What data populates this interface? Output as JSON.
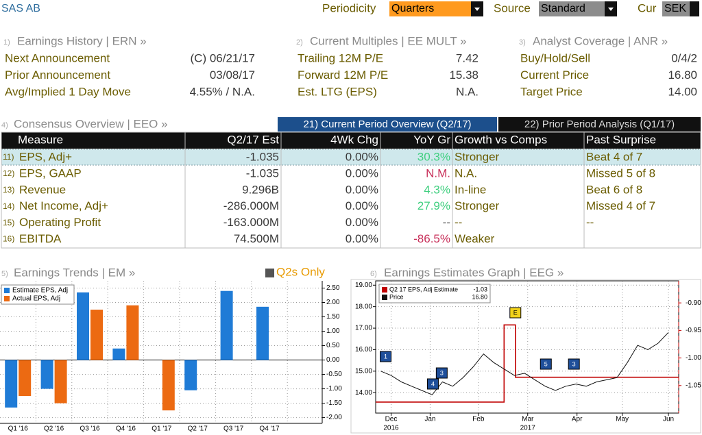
{
  "header": {
    "ticker": "SAS AB",
    "periodicity_label": "Periodicity",
    "periodicity": "Quarters",
    "source_label": "Source",
    "source": "Standard",
    "currency_label": "Cur",
    "currency": "SEK"
  },
  "panels": [
    {
      "number": "1)",
      "title": "Earnings History | ERN »",
      "rows": [
        [
          "Next Announcement",
          "(C)  06/21/17"
        ],
        [
          "Prior Announcement",
          "03/08/17"
        ],
        [
          "Avg/Implied 1 Day Move",
          "4.55% / N.A."
        ]
      ]
    },
    {
      "number": "2)",
      "title": "Current Multiples | EE MULT »",
      "rows": [
        [
          "Trailing 12M P/E",
          "7.42"
        ],
        [
          "Forward 12M P/E",
          "15.38"
        ],
        [
          "Est. LTG (EPS)",
          "N.A."
        ]
      ]
    },
    {
      "number": "3)",
      "title": "Analyst Coverage | ANR »",
      "rows": [
        [
          "Buy/Hold/Sell",
          "0/4/2"
        ],
        [
          "Current Price",
          "16.80"
        ],
        [
          "Target Price",
          "14.00"
        ]
      ]
    }
  ],
  "consensus": {
    "number": "4)",
    "title": "Consensus Overview | EEO »",
    "tabs": [
      {
        "label": "21) Current Period Overview (Q2/17)",
        "active": true
      },
      {
        "label": "22) Prior Period Analysis (Q1/17)",
        "active": false
      }
    ],
    "columns": [
      "Measure",
      "Q2/17 Est",
      "4Wk Chg",
      "YoY Gr",
      "Growth vs Comps",
      "Past Surprise"
    ],
    "rows": [
      {
        "number": "11)",
        "cells": [
          "EPS, Adj+",
          "-1.035",
          "0.00%",
          "30.3%",
          "Stronger",
          "Beat 4 of 7"
        ],
        "yoy_color": "#3fcf7f",
        "selected": true
      },
      {
        "number": "12)",
        "cells": [
          "EPS, GAAP",
          "-1.035",
          "0.00%",
          "N.M.",
          "N.A.",
          "Missed 5 of 8"
        ],
        "yoy_color": "#c8305a",
        "selected": false
      },
      {
        "number": "13)",
        "cells": [
          "Revenue",
          "9.296B",
          "0.00%",
          "4.3%",
          "In-line",
          "Beat 6 of 8"
        ],
        "yoy_color": "#3fcf7f",
        "selected": false
      },
      {
        "number": "14)",
        "cells": [
          "Net Income, Adj+",
          "-286.000M",
          "0.00%",
          "27.9%",
          "Stronger",
          "Missed 4 of 7"
        ],
        "yoy_color": "#3fcf7f",
        "selected": false
      },
      {
        "number": "15)",
        "cells": [
          "Operating Profit",
          "-163.000M",
          "0.00%",
          "--",
          "--",
          "--"
        ],
        "yoy_color": "#555555",
        "selected": false
      },
      {
        "number": "16)",
        "cells": [
          "EBITDA",
          "74.500M",
          "0.00%",
          "-86.5%",
          "Weaker",
          ""
        ],
        "yoy_color": "#c8305a",
        "selected": false
      }
    ]
  },
  "chart_data": [
    {
      "type": "bar",
      "number": "5)",
      "title": "Earnings Trends | EM »",
      "option": "Q2s Only",
      "categories": [
        "Q1 '16",
        "Q2 '16",
        "Q3 '16",
        "Q4 '16",
        "Q1 '17",
        "Q2 '17",
        "Q3 '17",
        "Q4 '17"
      ],
      "series": [
        {
          "name": "Estimate EPS, Adj",
          "color": "#1f7bd6",
          "values": [
            -1.65,
            -1.0,
            2.35,
            0.4,
            null,
            -1.05,
            2.4,
            1.85
          ]
        },
        {
          "name": "Actual EPS, Adj",
          "color": "#ec6a12",
          "values": [
            -1.25,
            -1.5,
            1.75,
            1.9,
            -1.75,
            null,
            null,
            null
          ]
        }
      ],
      "ylim": [
        -2.2,
        2.75
      ],
      "yticks": [
        {
          "value": 2.5,
          "label": "2.50"
        },
        {
          "value": 2,
          "label": "2.00"
        },
        {
          "value": 1.5,
          "label": "1.50"
        },
        {
          "value": 1,
          "label": "1.00"
        },
        {
          "value": 0.5,
          "label": "0.50"
        },
        {
          "value": 0,
          "label": "0.00"
        },
        {
          "value": -0.5,
          "label": "-0.50"
        },
        {
          "value": -1,
          "label": "-1.00"
        },
        {
          "value": -1.5,
          "label": "-1.50"
        },
        {
          "value": -2,
          "label": "-2.00"
        }
      ],
      "grid": true
    },
    {
      "type": "line",
      "number": "6)",
      "title": "Earnings Estimates Graph | EEG »",
      "series": [
        {
          "name": "Q2 17 EPS, Adj Estimate",
          "legend_value": "-1.03",
          "color": "#c00000",
          "axis": "y2",
          "x": [
            -0.5,
            12,
            12,
            13.1,
            13.1,
            29
          ],
          "values": [
            -1.08,
            -1.08,
            -0.94,
            -0.94,
            -1.035,
            -1.035
          ]
        },
        {
          "name": "Price",
          "legend_value": "16.80",
          "color": "#111111",
          "x": [
            0,
            1,
            2,
            3,
            4,
            5,
            6,
            7,
            8,
            9,
            10,
            11,
            12,
            13,
            14,
            15,
            16,
            17,
            18,
            19,
            20,
            21,
            22,
            23,
            24,
            25,
            26,
            27,
            28
          ],
          "values": [
            15.0,
            14.8,
            14.5,
            14.3,
            14.1,
            13.9,
            14.5,
            14.3,
            14.7,
            15.2,
            15.8,
            15.4,
            15.1,
            14.8,
            14.9,
            14.6,
            14.3,
            14.1,
            14.3,
            14.4,
            14.3,
            14.5,
            14.6,
            14.7,
            15.4,
            16.2,
            16.0,
            16.3,
            16.8
          ]
        }
      ],
      "annotations": [
        {
          "label": "1",
          "x": 0.47
        },
        {
          "label": "4",
          "x": 5.07
        },
        {
          "label": "3",
          "x": 5.93
        },
        {
          "label": "E",
          "x": 13.1
        },
        {
          "label": "5",
          "x": 16.07
        },
        {
          "label": "3",
          "x": 18.8
        }
      ],
      "xlim": [
        -0.5,
        29
      ],
      "xticks": [
        {
          "value": 1,
          "label": "Dec"
        },
        {
          "value": 4.8,
          "label": "Jan"
        },
        {
          "value": 9.5,
          "label": "Feb"
        },
        {
          "value": 14.3,
          "label": "Mar"
        },
        {
          "value": 19.1,
          "label": "Apr"
        },
        {
          "value": 23.5,
          "label": "May"
        },
        {
          "value": 28,
          "label": "Jun"
        }
      ],
      "years": [
        {
          "value": 1,
          "label": "2016"
        },
        {
          "value": 14.3,
          "label": "2017"
        }
      ],
      "ylim": [
        13.05,
        19.2
      ],
      "yticks": [
        {
          "value": 19,
          "label": "19.00"
        },
        {
          "value": 18,
          "label": "18.00"
        },
        {
          "value": 17,
          "label": "17.00"
        },
        {
          "value": 16,
          "label": "16.00"
        },
        {
          "value": 15,
          "label": "15.00"
        },
        {
          "value": 14,
          "label": "14.00"
        }
      ],
      "y2lim": [
        -1.1,
        -0.86
      ],
      "y2ticks": [
        {
          "value": -0.9,
          "label": "-0.90"
        },
        {
          "value": -0.95,
          "label": "-0.95"
        },
        {
          "value": -1,
          "label": "-1.00"
        },
        {
          "value": -1.05,
          "label": "-1.05"
        }
      ],
      "grid": true
    }
  ]
}
